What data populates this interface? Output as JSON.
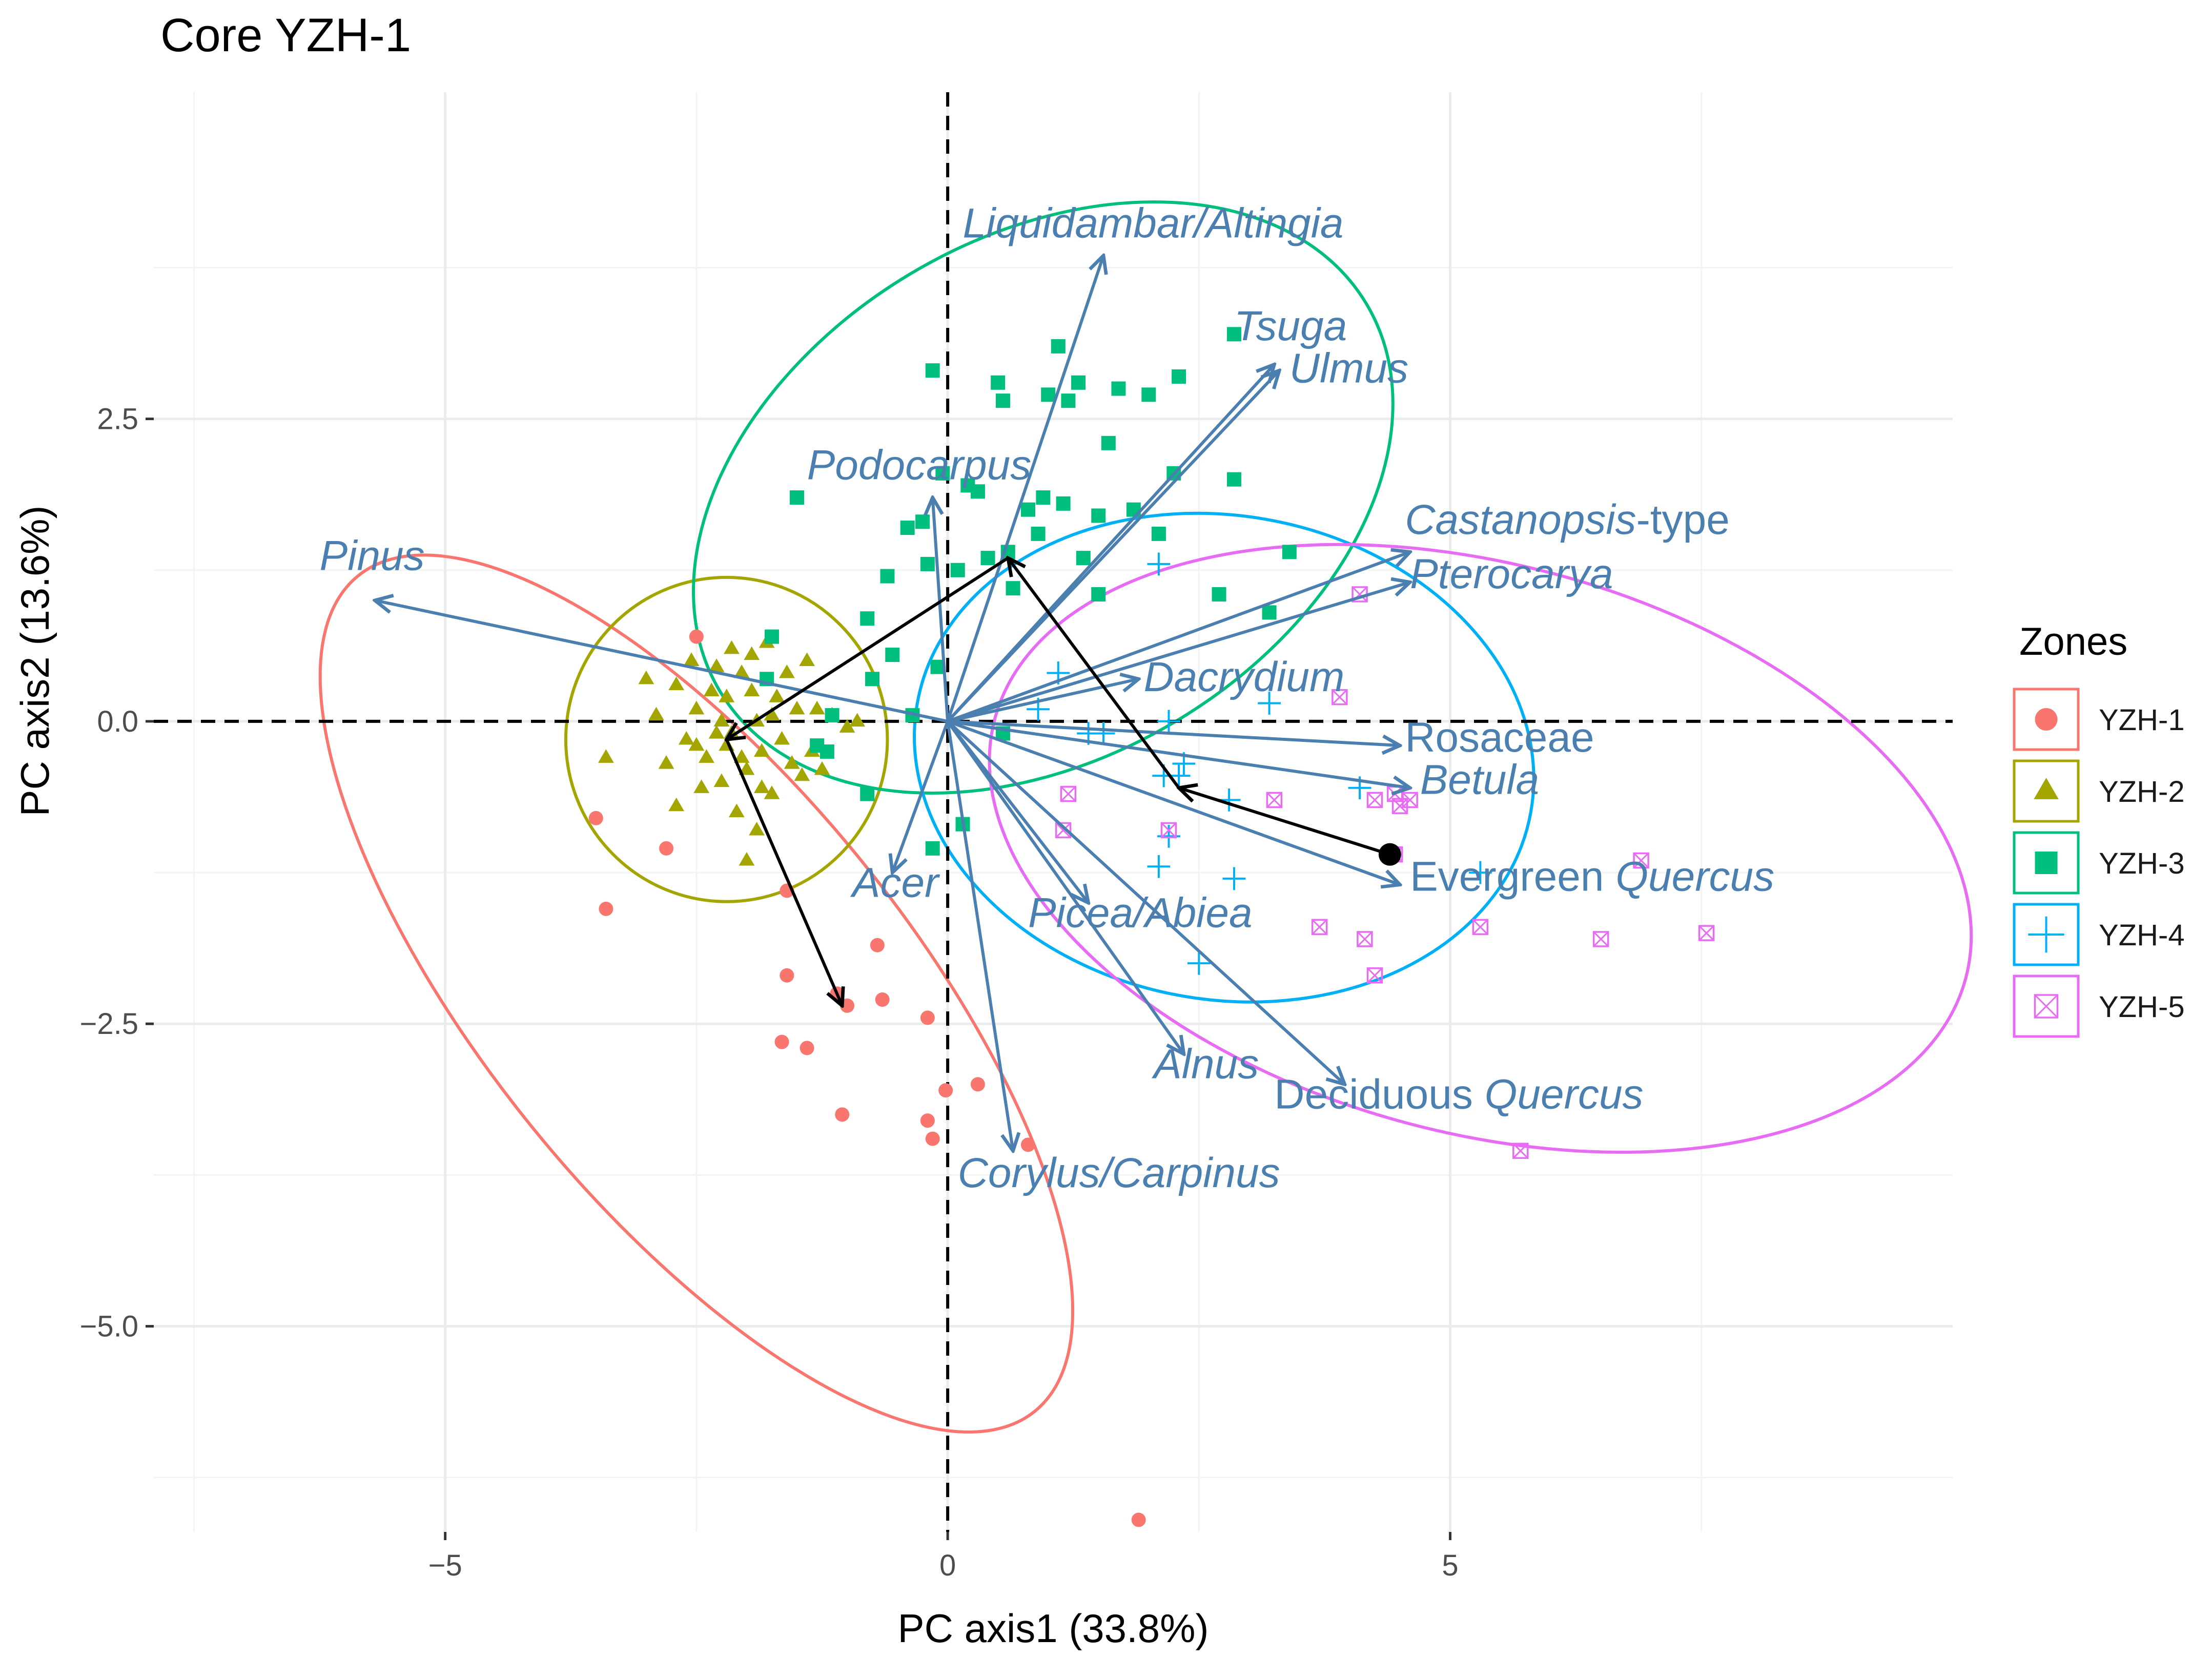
{
  "chart_data": {
    "type": "scatter",
    "title": "Core YZH-1",
    "xlabel": "PC axis1 (33.8%)",
    "ylabel": "PC axis2 (13.6%)",
    "xlim": [
      -7.9,
      10.0
    ],
    "ylim": [
      -6.7,
      5.2
    ],
    "x_ticks": [
      {
        "value": -5,
        "label": "−5"
      },
      {
        "value": 0,
        "label": "0"
      },
      {
        "value": 5,
        "label": "5"
      }
    ],
    "y_ticks": [
      {
        "value": 2.5,
        "label": "2.5"
      },
      {
        "value": 0,
        "label": "0.0"
      },
      {
        "value": -2.5,
        "label": "−2.5"
      },
      {
        "value": -5,
        "label": "−5.0"
      }
    ],
    "grid": true,
    "zero_lines": {
      "style": "dashed",
      "color": "#000000"
    },
    "colors": {
      "YZH-1": "#F8766D",
      "YZH-2": "#A3A500",
      "YZH-3": "#00BF7D",
      "YZH-4": "#00B0F6",
      "YZH-5": "#E76BF3",
      "loadings": "#4a7fb0",
      "trajectory": "#000000"
    },
    "legend": {
      "title": "Zones",
      "placement": "right",
      "items": [
        {
          "label": "YZH-1",
          "shape": "circle"
        },
        {
          "label": "YZH-2",
          "shape": "triangle"
        },
        {
          "label": "YZH-3",
          "shape": "square"
        },
        {
          "label": "YZH-4",
          "shape": "plus"
        },
        {
          "label": "YZH-5",
          "shape": "square-cross"
        }
      ]
    },
    "series": [
      {
        "name": "YZH-1",
        "shape": "circle",
        "points": [
          [
            -2.5,
            0.7
          ],
          [
            -3.5,
            -0.8
          ],
          [
            -3.4,
            -1.55
          ],
          [
            -2.8,
            -1.05
          ],
          [
            -1.6,
            -1.4
          ],
          [
            -1.6,
            -2.1
          ],
          [
            -1.1,
            -2.25
          ],
          [
            -1.0,
            -2.35
          ],
          [
            -0.7,
            -1.85
          ],
          [
            -0.65,
            -2.3
          ],
          [
            -0.2,
            -2.45
          ],
          [
            -1.65,
            -2.65
          ],
          [
            -1.4,
            -2.7
          ],
          [
            -1.05,
            -3.25
          ],
          [
            -0.02,
            -3.05
          ],
          [
            0.3,
            -3.0
          ],
          [
            -0.2,
            -3.3
          ],
          [
            -0.15,
            -3.45
          ],
          [
            0.8,
            -3.5
          ],
          [
            1.9,
            -6.6
          ]
        ]
      },
      {
        "name": "YZH-2",
        "shape": "triangle",
        "points": [
          [
            -3.4,
            -0.3
          ],
          [
            -3.0,
            0.35
          ],
          [
            -2.9,
            0.05
          ],
          [
            -2.7,
            0.3
          ],
          [
            -2.55,
            0.5
          ],
          [
            -2.5,
            0.1
          ],
          [
            -2.4,
            -0.3
          ],
          [
            -2.3,
            0.45
          ],
          [
            -2.25,
            -0.5
          ],
          [
            -2.2,
            0.2
          ],
          [
            -2.15,
            -0.1
          ],
          [
            -2.1,
            -0.75
          ],
          [
            -2.05,
            0.4
          ],
          [
            -2.0,
            -0.4
          ],
          [
            -1.95,
            0.55
          ],
          [
            -1.9,
            0.0
          ],
          [
            -1.85,
            -0.25
          ],
          [
            -1.8,
            0.65
          ],
          [
            -1.75,
            -0.6
          ],
          [
            -1.7,
            0.2
          ],
          [
            -1.65,
            -0.15
          ],
          [
            -1.6,
            0.4
          ],
          [
            -1.55,
            -0.35
          ],
          [
            -1.5,
            0.1
          ],
          [
            -1.45,
            -0.45
          ],
          [
            -1.4,
            0.5
          ],
          [
            -1.35,
            -0.25
          ],
          [
            -1.3,
            0.1
          ],
          [
            -1.25,
            -0.4
          ],
          [
            -2.8,
            -0.35
          ],
          [
            -2.6,
            -0.15
          ],
          [
            -2.45,
            -0.55
          ],
          [
            -2.35,
            0.25
          ],
          [
            -2.25,
            0.0
          ],
          [
            -2.15,
            0.6
          ],
          [
            -2.05,
            -0.3
          ],
          [
            -1.95,
            0.25
          ],
          [
            -1.85,
            -0.55
          ],
          [
            -1.75,
            0.05
          ],
          [
            -2.7,
            -0.7
          ],
          [
            -2.0,
            -1.15
          ],
          [
            -1.9,
            -0.9
          ],
          [
            -2.5,
            -0.2
          ],
          [
            -2.3,
            -0.1
          ],
          [
            -1.15,
            0.05
          ],
          [
            -1.0,
            -0.05
          ],
          [
            -0.9,
            0.0
          ],
          [
            -2.2,
            -0.2
          ]
        ]
      },
      {
        "name": "YZH-3",
        "shape": "square",
        "points": [
          [
            -1.5,
            1.85
          ],
          [
            -1.8,
            0.35
          ],
          [
            -1.75,
            0.7
          ],
          [
            -1.3,
            -0.2
          ],
          [
            -1.2,
            -0.25
          ],
          [
            -1.15,
            0.05
          ],
          [
            -0.8,
            0.85
          ],
          [
            -0.75,
            0.35
          ],
          [
            -0.6,
            1.2
          ],
          [
            -0.55,
            0.55
          ],
          [
            -0.4,
            1.6
          ],
          [
            -0.35,
            0.05
          ],
          [
            -0.25,
            1.65
          ],
          [
            -0.2,
            1.3
          ],
          [
            -0.15,
            2.9
          ],
          [
            -0.1,
            0.45
          ],
          [
            -0.05,
            2.05
          ],
          [
            0.1,
            1.25
          ],
          [
            0.2,
            1.95
          ],
          [
            0.3,
            1.9
          ],
          [
            0.4,
            1.35
          ],
          [
            0.5,
            2.8
          ],
          [
            0.55,
            2.65
          ],
          [
            0.6,
            1.4
          ],
          [
            0.65,
            1.1
          ],
          [
            0.8,
            1.75
          ],
          [
            0.9,
            1.55
          ],
          [
            1.0,
            2.7
          ],
          [
            1.1,
            3.1
          ],
          [
            1.15,
            1.8
          ],
          [
            1.2,
            2.65
          ],
          [
            1.3,
            2.8
          ],
          [
            1.35,
            1.35
          ],
          [
            1.5,
            1.05
          ],
          [
            1.6,
            2.3
          ],
          [
            1.7,
            2.75
          ],
          [
            1.85,
            1.75
          ],
          [
            2.0,
            2.7
          ],
          [
            2.25,
            2.05
          ],
          [
            2.3,
            2.85
          ],
          [
            2.7,
            1.05
          ],
          [
            2.85,
            3.2
          ],
          [
            2.85,
            2.0
          ],
          [
            3.2,
            0.9
          ],
          [
            3.4,
            1.4
          ],
          [
            0.95,
            1.85
          ],
          [
            0.55,
            -0.1
          ],
          [
            0.15,
            -0.85
          ],
          [
            -0.15,
            -1.05
          ],
          [
            -0.8,
            -0.6
          ],
          [
            2.1,
            1.55
          ],
          [
            1.5,
            1.7
          ]
        ]
      },
      {
        "name": "YZH-4",
        "shape": "plus",
        "points": [
          [
            2.1,
            1.3
          ],
          [
            1.1,
            0.4
          ],
          [
            1.4,
            -0.1
          ],
          [
            1.55,
            -0.1
          ],
          [
            2.15,
            -0.45
          ],
          [
            2.3,
            -0.45
          ],
          [
            2.2,
            -0.95
          ],
          [
            2.35,
            -0.35
          ],
          [
            2.2,
            0.0
          ],
          [
            2.8,
            -0.65
          ],
          [
            3.2,
            0.15
          ],
          [
            2.1,
            -1.2
          ],
          [
            2.85,
            -1.3
          ],
          [
            2.5,
            -2.0
          ],
          [
            4.1,
            -0.55
          ],
          [
            5.3,
            -1.25
          ],
          [
            0.9,
            0.1
          ]
        ]
      },
      {
        "name": "YZH-5",
        "shape": "square-cross",
        "points": [
          [
            4.1,
            1.05
          ],
          [
            3.9,
            0.2
          ],
          [
            1.2,
            -0.6
          ],
          [
            1.15,
            -0.9
          ],
          [
            2.2,
            -0.9
          ],
          [
            3.25,
            -0.65
          ],
          [
            4.25,
            -0.65
          ],
          [
            4.45,
            -0.6
          ],
          [
            4.5,
            -0.7
          ],
          [
            4.6,
            -0.65
          ],
          [
            4.45,
            -1.1
          ],
          [
            3.7,
            -1.7
          ],
          [
            4.15,
            -1.8
          ],
          [
            4.25,
            -2.1
          ],
          [
            5.3,
            -1.7
          ],
          [
            6.5,
            -1.8
          ],
          [
            6.9,
            -1.15
          ],
          [
            7.55,
            -1.75
          ],
          [
            5.7,
            -3.55
          ]
        ]
      }
    ],
    "ellipses": [
      {
        "name": "YZH-1",
        "center": [
          -2.5,
          -2.25
        ],
        "rx": 5.35,
        "ry": 1.75,
        "angle_deg": -51
      },
      {
        "name": "YZH-2",
        "center": [
          -2.2,
          -0.15
        ],
        "rx": 1.6,
        "ry": 1.34,
        "angle_deg": 0
      },
      {
        "name": "YZH-3",
        "center": [
          0.95,
          1.85
        ],
        "rx": 3.75,
        "ry": 2.15,
        "angle_deg": 31
      },
      {
        "name": "YZH-4",
        "center": [
          2.75,
          -0.3
        ],
        "rx": 3.1,
        "ry": 2.0,
        "angle_deg": -10
      },
      {
        "name": "YZH-5",
        "center": [
          5.3,
          -1.05
        ],
        "rx": 5.0,
        "ry": 2.35,
        "angle_deg": -15
      }
    ],
    "loadings": [
      {
        "name": "Liquidambar/Altingia",
        "italic_part": "Liquidambar/Altingia",
        "plain_part": "",
        "x": 1.55,
        "y": 3.85,
        "label_x": 0.15,
        "label_y": 4.0,
        "anchor": "start"
      },
      {
        "name": "Tsuga",
        "italic_part": "Tsuga",
        "plain_part": "",
        "x": 3.25,
        "y": 2.95,
        "label_x": 2.85,
        "label_y": 3.15,
        "anchor": "start"
      },
      {
        "name": "Ulmus",
        "italic_part": "Ulmus",
        "plain_part": "",
        "x": 3.3,
        "y": 2.9,
        "label_x": 3.4,
        "label_y": 2.8,
        "anchor": "start"
      },
      {
        "name": "Podocarpus",
        "italic_part": "Podocarpus",
        "plain_part": "",
        "x": -0.15,
        "y": 1.85,
        "label_x": -1.4,
        "label_y": 2.0,
        "anchor": "start"
      },
      {
        "name": "Pinus",
        "italic_part": "Pinus",
        "plain_part": "",
        "x": -5.7,
        "y": 1.0,
        "label_x": -6.25,
        "label_y": 1.25,
        "anchor": "start"
      },
      {
        "name": "Castanopsis-type",
        "italic_part": "Castanopsis",
        "plain_part": "-type",
        "x": 4.6,
        "y": 1.4,
        "label_x": 4.55,
        "label_y": 1.55,
        "anchor": "start"
      },
      {
        "name": "Pterocarya",
        "italic_part": "Pterocarya",
        "plain_part": "",
        "x": 4.6,
        "y": 1.15,
        "label_x": 4.6,
        "label_y": 1.1,
        "anchor": "start"
      },
      {
        "name": "Dacrydium",
        "italic_part": "Dacrydium",
        "plain_part": "",
        "x": 1.9,
        "y": 0.35,
        "label_x": 1.95,
        "label_y": 0.25,
        "anchor": "start"
      },
      {
        "name": "Rosaceae",
        "italic_part": "",
        "plain_part": "Rosaceae",
        "x": 4.5,
        "y": -0.2,
        "label_x": 4.55,
        "label_y": -0.25,
        "anchor": "start"
      },
      {
        "name": "Betula",
        "italic_part": "Betula",
        "plain_part": "",
        "x": 4.6,
        "y": -0.55,
        "label_x": 4.7,
        "label_y": -0.6,
        "anchor": "start"
      },
      {
        "name": "Evergreen Quercus",
        "italic_part": "Quercus",
        "plain_part": "Evergreen ",
        "x": 4.5,
        "y": -1.35,
        "label_x": 4.6,
        "label_y": -1.4,
        "anchor": "start"
      },
      {
        "name": "Acer",
        "italic_part": "Acer",
        "plain_part": "",
        "x": -0.55,
        "y": -1.25,
        "label_x": -0.95,
        "label_y": -1.45,
        "anchor": "start"
      },
      {
        "name": "Picea/Abiea",
        "italic_part": "Picea/Abiea",
        "plain_part": "",
        "x": 1.4,
        "y": -1.5,
        "label_x": 0.8,
        "label_y": -1.7,
        "anchor": "start"
      },
      {
        "name": "Alnus",
        "italic_part": "Alnus",
        "plain_part": "",
        "x": 2.35,
        "y": -2.75,
        "label_x": 2.05,
        "label_y": -2.95,
        "anchor": "start"
      },
      {
        "name": "Deciduous Quercus",
        "italic_part": "Quercus",
        "plain_part": "Deciduous ",
        "x": 3.95,
        "y": -3.0,
        "label_x": 3.25,
        "label_y": -3.2,
        "anchor": "start"
      },
      {
        "name": "Corylus/Carpinus",
        "italic_part": "Corylus/Carpinus",
        "plain_part": "",
        "x": 0.65,
        "y": -3.55,
        "label_x": 0.1,
        "label_y": -3.85,
        "anchor": "start"
      }
    ],
    "trajectory": [
      [
        4.4,
        -1.1
      ],
      [
        2.3,
        -0.55
      ],
      [
        0.6,
        1.35
      ],
      [
        -2.2,
        -0.15
      ],
      [
        -1.05,
        -2.35
      ]
    ]
  }
}
